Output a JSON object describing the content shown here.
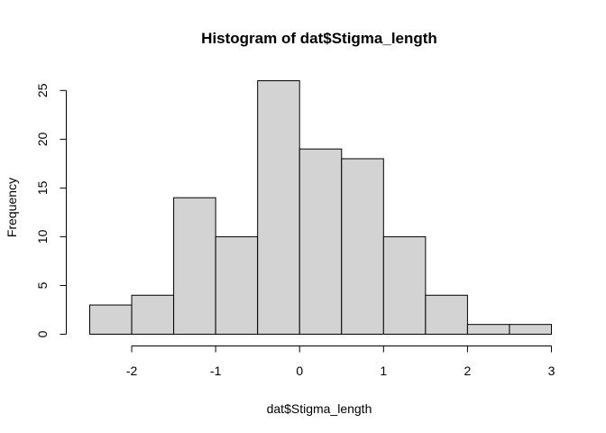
{
  "chart_data": {
    "type": "bar",
    "title": "Histogram of dat$Stigma_length",
    "xlabel": "dat$Stigma_length",
    "ylabel": "Frequency",
    "bin_edges": [
      -2.5,
      -2.0,
      -1.5,
      -1.0,
      -0.5,
      0.0,
      0.5,
      1.0,
      1.5,
      2.0,
      2.5,
      3.0
    ],
    "values": [
      3,
      4,
      14,
      10,
      26,
      19,
      18,
      10,
      4,
      1,
      1
    ],
    "xlim": [
      -2.5,
      3.0
    ],
    "ylim": [
      0,
      26
    ],
    "x_ticks": [
      -2,
      -1,
      0,
      1,
      2,
      3
    ],
    "x_tick_labels": [
      "-2",
      "-1",
      "0",
      "1",
      "2",
      "3"
    ],
    "y_ticks": [
      0,
      5,
      10,
      15,
      20,
      25
    ],
    "y_tick_labels": [
      "0",
      "5",
      "10",
      "15",
      "20",
      "25"
    ],
    "bar_color": "#d3d3d3",
    "grid": false,
    "legend": "none"
  }
}
